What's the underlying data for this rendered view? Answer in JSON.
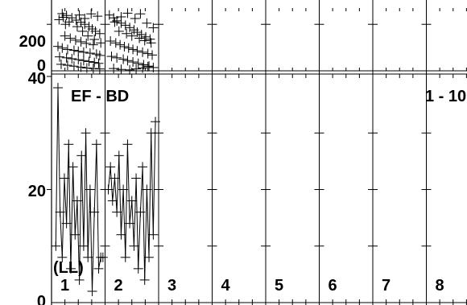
{
  "chart_data": [
    {
      "type": "scatter",
      "panel": "top",
      "ylabel_ticks": [
        "200",
        "0"
      ],
      "ylim": [
        0,
        270
      ],
      "xlim": [
        0,
        10
      ],
      "series": [
        {
          "points": [
            [
              0.2,
              246
            ],
            [
              0.28,
              238
            ],
            [
              0.38,
              228
            ],
            [
              0.46,
              218
            ],
            [
              0.55,
              209
            ],
            [
              0.62,
              200
            ],
            [
              0.7,
              190
            ],
            [
              0.76,
              180
            ],
            [
              0.82,
              170
            ],
            [
              0.9,
              160
            ],
            [
              0.25,
              150
            ],
            [
              0.35,
              140
            ],
            [
              0.45,
              132
            ],
            [
              0.55,
              125
            ],
            [
              0.65,
              118
            ],
            [
              0.78,
              112
            ],
            [
              0.12,
              105
            ],
            [
              0.2,
              98
            ],
            [
              0.3,
              92
            ],
            [
              0.42,
              88
            ],
            [
              0.5,
              84
            ],
            [
              0.6,
              80
            ],
            [
              0.72,
              76
            ],
            [
              0.84,
              72
            ],
            [
              0.9,
              66
            ],
            [
              0.15,
              60
            ],
            [
              0.28,
              56
            ],
            [
              0.38,
              52
            ],
            [
              0.5,
              48
            ],
            [
              0.6,
              44
            ],
            [
              0.7,
              40
            ],
            [
              0.8,
              36
            ],
            [
              0.88,
              32
            ],
            [
              0.18,
              28
            ],
            [
              0.3,
              24
            ],
            [
              0.42,
              20
            ],
            [
              0.55,
              16
            ],
            [
              0.66,
              12
            ],
            [
              0.78,
              10
            ],
            [
              0.9,
              8
            ],
            [
              0.22,
              230
            ],
            [
              0.33,
              210
            ],
            [
              0.48,
              190
            ],
            [
              0.58,
              170
            ],
            [
              0.68,
              150
            ],
            [
              0.8,
              135
            ],
            [
              0.92,
              120
            ],
            [
              0.14,
              220
            ],
            [
              0.26,
              200
            ],
            [
              0.52,
              240
            ],
            [
              0.62,
              225
            ],
            [
              0.74,
              245
            ],
            [
              0.86,
              235
            ],
            [
              1.08,
              240
            ],
            [
              1.16,
              228
            ],
            [
              1.22,
              215
            ],
            [
              1.3,
              205
            ],
            [
              1.38,
              196
            ],
            [
              1.46,
              186
            ],
            [
              1.54,
              176
            ],
            [
              1.6,
              166
            ],
            [
              1.68,
              156
            ],
            [
              1.76,
              146
            ],
            [
              1.84,
              136
            ],
            [
              1.1,
              128
            ],
            [
              1.2,
              120
            ],
            [
              1.28,
              112
            ],
            [
              1.36,
              104
            ],
            [
              1.44,
              98
            ],
            [
              1.52,
              92
            ],
            [
              1.6,
              86
            ],
            [
              1.7,
              80
            ],
            [
              1.8,
              74
            ],
            [
              1.88,
              68
            ],
            [
              1.12,
              62
            ],
            [
              1.22,
              56
            ],
            [
              1.34,
              50
            ],
            [
              1.42,
              44
            ],
            [
              1.52,
              38
            ],
            [
              1.62,
              32
            ],
            [
              1.72,
              26
            ],
            [
              1.82,
              20
            ],
            [
              1.9,
              14
            ],
            [
              1.16,
              10
            ],
            [
              1.3,
              6
            ],
            [
              1.46,
              4
            ],
            [
              1.58,
              8
            ],
            [
              1.7,
              12
            ],
            [
              1.8,
              18
            ],
            [
              1.18,
              210
            ],
            [
              1.3,
              232
            ],
            [
              1.42,
              248
            ],
            [
              1.56,
              225
            ],
            [
              1.66,
              245
            ],
            [
              1.78,
              205
            ],
            [
              1.9,
              185
            ],
            [
              1.26,
              170
            ],
            [
              1.4,
              160
            ],
            [
              1.5,
              150
            ],
            [
              1.64,
              140
            ],
            [
              1.74,
              130
            ],
            [
              1.86,
              120
            ]
          ]
        }
      ]
    },
    {
      "type": "line",
      "panel": "bottom",
      "title": "EF - BD",
      "title_right": "1 - 10",
      "annotation": "(LL)",
      "ylabel_ticks": [
        "40",
        "20",
        "0"
      ],
      "ylim": [
        0,
        40
      ],
      "xlim": [
        0,
        10
      ],
      "column_labels": [
        "1",
        "2",
        "3",
        "4",
        "5",
        "6",
        "7",
        "8"
      ],
      "series": [
        {
          "segment": 1,
          "x": [
            0.08,
            0.12,
            0.16,
            0.2,
            0.24,
            0.28,
            0.32,
            0.36,
            0.4,
            0.44,
            0.48,
            0.52,
            0.56,
            0.6,
            0.64,
            0.68,
            0.72,
            0.76,
            0.8,
            0.84,
            0.88,
            0.92,
            0.96
          ],
          "y": [
            10,
            38,
            16,
            8,
            22,
            14,
            28,
            6,
            24,
            12,
            18,
            4,
            26,
            10,
            30,
            8,
            20,
            2,
            16,
            28,
            6,
            8,
            8
          ]
        },
        {
          "segment": 2,
          "x": [
            1.06,
            1.1,
            1.14,
            1.18,
            1.22,
            1.26,
            1.3,
            1.34,
            1.38,
            1.42,
            1.46,
            1.5,
            1.54,
            1.58,
            1.62,
            1.66,
            1.7,
            1.74,
            1.78,
            1.82,
            1.86,
            1.9,
            1.94
          ],
          "y": [
            20,
            24,
            18,
            22,
            16,
            26,
            12,
            20,
            8,
            28,
            14,
            18,
            10,
            22,
            6,
            16,
            24,
            4,
            20,
            8,
            30,
            12,
            32
          ]
        }
      ]
    }
  ]
}
